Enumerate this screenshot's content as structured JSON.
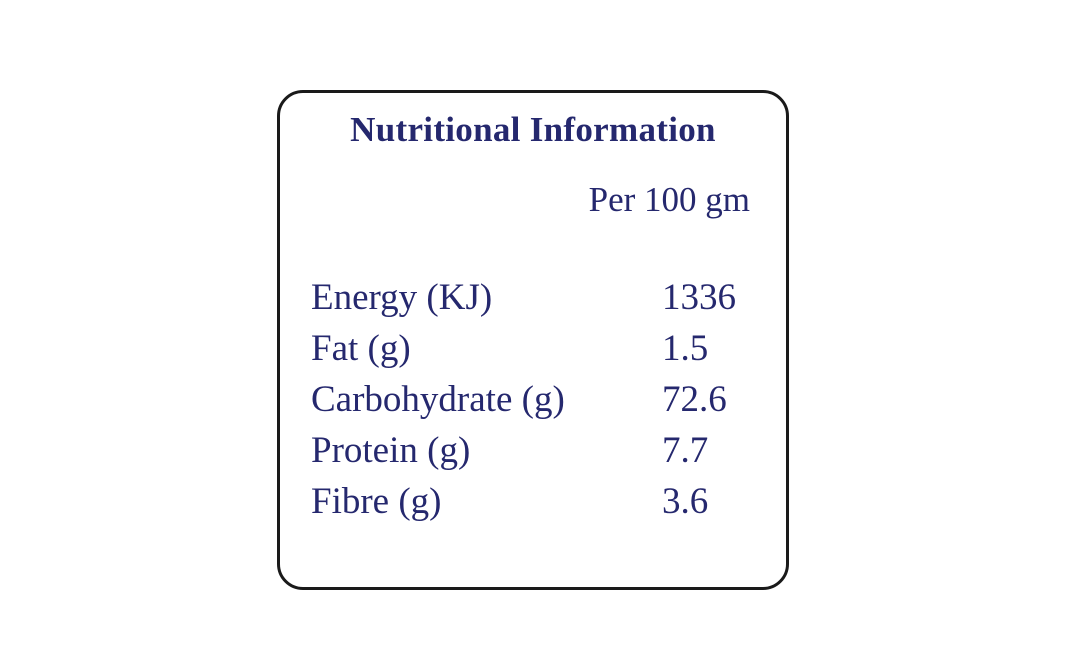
{
  "panel": {
    "title": "Nutritional Information",
    "serving": "Per 100 gm",
    "rows": [
      {
        "label": "Energy (KJ)",
        "value": "1336"
      },
      {
        "label": "Fat (g)",
        "value": "1.5"
      },
      {
        "label": "Carbohydrate (g)",
        "value": "72.6"
      },
      {
        "label": "Protein (g)",
        "value": "7.7"
      },
      {
        "label": "Fibre (g)",
        "value": "3.6"
      }
    ]
  }
}
